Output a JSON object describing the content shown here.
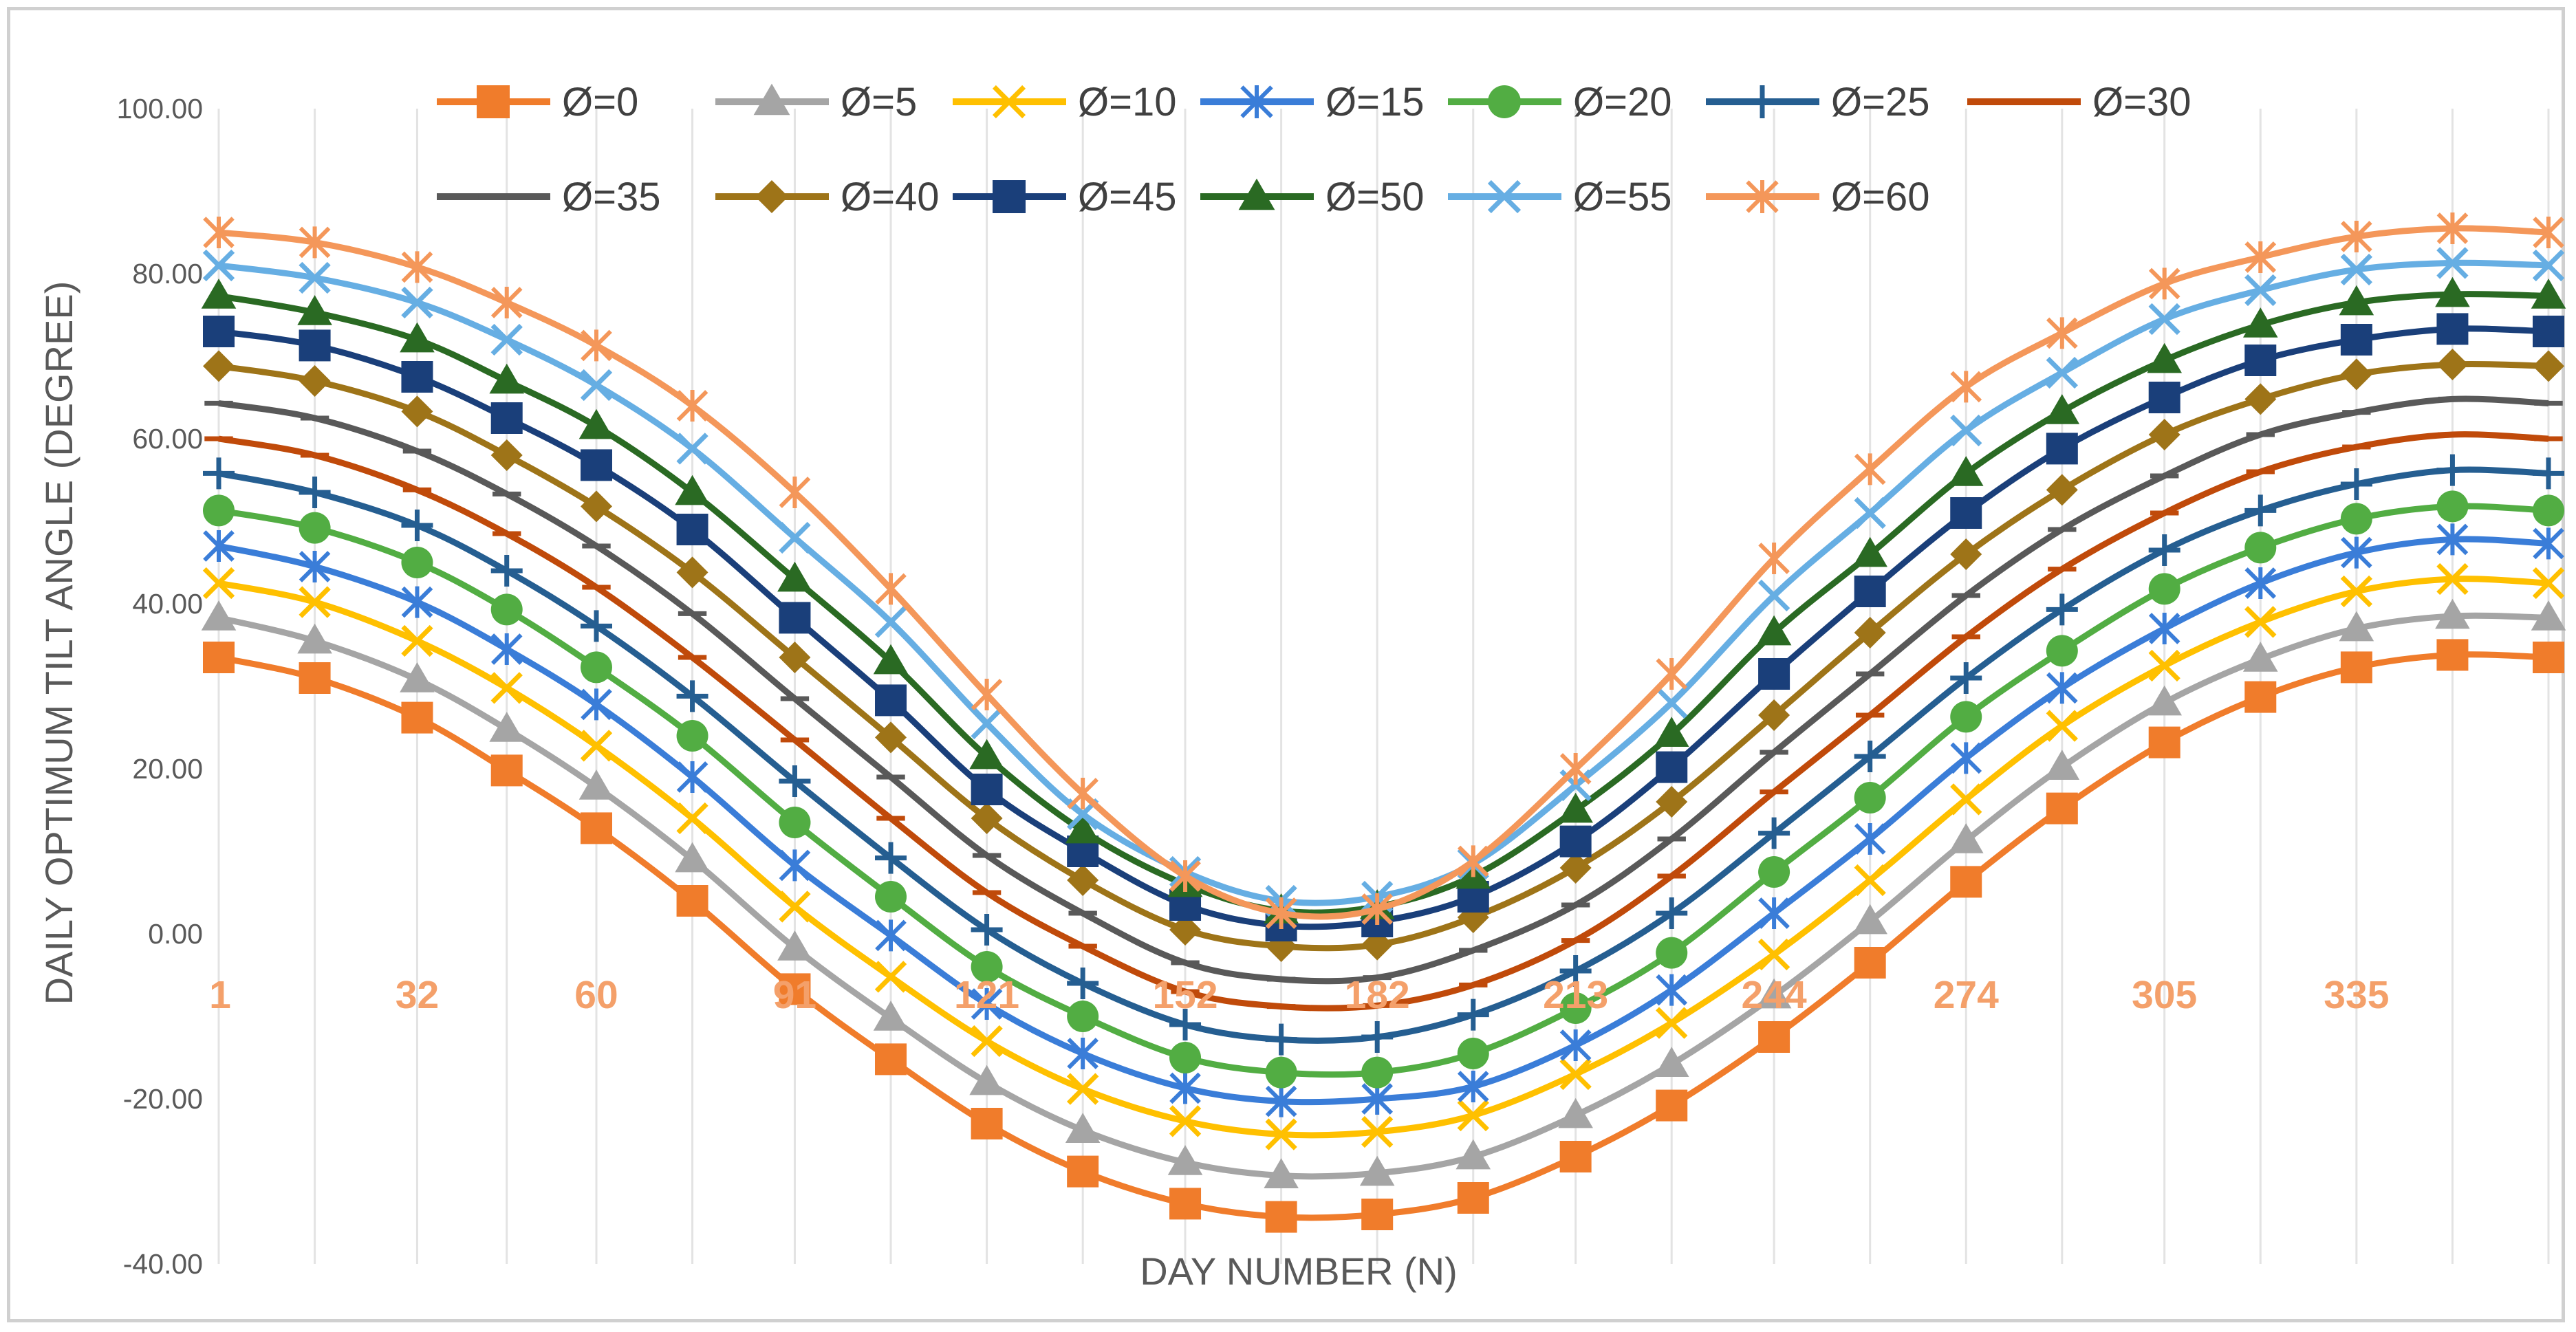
{
  "chart_data": {
    "type": "line",
    "xlabel": "DAY NUMBER (N)",
    "ylabel": "DAILY OPTIMUM TILT ANGLE (DEGREE)",
    "ylim": [
      -40,
      100
    ],
    "yticks": [
      "100.00",
      "80.00",
      "60.00",
      "40.00",
      "20.00",
      "0.00",
      "-20.00",
      "-40.00"
    ],
    "xticks": [
      "1",
      "32",
      "60",
      "91",
      "121",
      "152",
      "182",
      "213",
      "244",
      "274",
      "305",
      "335"
    ],
    "grid": "vertical",
    "legend_position": "top",
    "x": [
      1,
      16,
      32,
      46,
      60,
      75,
      91,
      106,
      121,
      136,
      152,
      167,
      182,
      197,
      213,
      228,
      244,
      259,
      274,
      289,
      305,
      320,
      335,
      350,
      365
    ],
    "series": [
      {
        "name": "Ø=0",
        "color": "#f07c2b",
        "marker": "square",
        "values": [
          33.5,
          31.0,
          26.2,
          19.8,
          12.8,
          4.0,
          -6.7,
          -15.2,
          -23.0,
          -28.8,
          -32.7,
          -34.3,
          -34.0,
          -32.0,
          -27.0,
          -20.8,
          -12.5,
          -3.5,
          6.3,
          15.2,
          23.2,
          28.7,
          32.3,
          33.8,
          33.5
        ]
      },
      {
        "name": "Ø=5",
        "color": "#a5a5a5",
        "marker": "triangle",
        "values": [
          38.3,
          35.5,
          30.8,
          24.8,
          17.8,
          9.0,
          -1.7,
          -10.2,
          -18.0,
          -23.8,
          -27.7,
          -29.3,
          -29.0,
          -27.0,
          -22.0,
          -15.8,
          -7.5,
          1.5,
          11.3,
          20.2,
          28.0,
          33.3,
          37.0,
          38.5,
          38.3
        ]
      },
      {
        "name": "Ø=10",
        "color": "#ffc000",
        "marker": "x",
        "values": [
          42.5,
          40.2,
          35.5,
          29.8,
          22.8,
          14.0,
          3.3,
          -5.2,
          -13.0,
          -18.8,
          -22.7,
          -24.3,
          -24.0,
          -22.0,
          -17.0,
          -10.8,
          -2.5,
          6.5,
          16.3,
          25.2,
          32.5,
          37.8,
          41.5,
          43.0,
          42.5
        ]
      },
      {
        "name": "Ø=15",
        "color": "#3a7dd8",
        "marker": "asterisk",
        "values": [
          47.0,
          44.5,
          40.2,
          34.5,
          27.8,
          19.0,
          8.3,
          -0.2,
          -8.5,
          -14.5,
          -18.7,
          -20.3,
          -20.0,
          -18.5,
          -13.5,
          -6.8,
          2.5,
          11.5,
          21.3,
          29.8,
          37.0,
          42.5,
          46.2,
          47.8,
          47.3
        ]
      },
      {
        "name": "Ø=20",
        "color": "#52ad43",
        "marker": "circle",
        "values": [
          51.3,
          49.2,
          45.0,
          39.3,
          32.3,
          24.0,
          13.5,
          4.5,
          -4.0,
          -10.0,
          -15.0,
          -16.8,
          -16.8,
          -14.5,
          -9.0,
          -2.3,
          7.5,
          16.5,
          26.3,
          34.3,
          41.8,
          46.8,
          50.3,
          51.8,
          51.3
        ]
      },
      {
        "name": "Ø=25",
        "color": "#255e91",
        "marker": "plus",
        "values": [
          55.8,
          53.5,
          49.5,
          44.0,
          37.3,
          28.8,
          18.5,
          9.2,
          0.5,
          -6.0,
          -11.0,
          -12.8,
          -12.5,
          -9.8,
          -4.5,
          2.5,
          12.2,
          21.5,
          31.0,
          39.3,
          46.5,
          51.3,
          54.5,
          56.2,
          55.8
        ]
      },
      {
        "name": "Ø=30",
        "color": "#c04a0a",
        "marker": "dash",
        "values": [
          60.0,
          58.0,
          53.8,
          48.5,
          42.0,
          33.5,
          23.5,
          14.0,
          5.0,
          -1.5,
          -7.0,
          -8.8,
          -8.7,
          -6.2,
          -0.8,
          7.0,
          17.2,
          26.5,
          36.0,
          44.2,
          51.0,
          56.0,
          59.0,
          60.5,
          60.0
        ]
      },
      {
        "name": "Ø=35",
        "color": "#595959",
        "marker": "dash",
        "values": [
          64.3,
          62.5,
          58.5,
          53.3,
          47.0,
          38.8,
          28.5,
          19.0,
          9.5,
          2.5,
          -3.5,
          -5.5,
          -5.3,
          -2.0,
          3.5,
          11.5,
          22.0,
          31.5,
          41.0,
          49.0,
          55.5,
          60.5,
          63.2,
          64.8,
          64.3
        ]
      },
      {
        "name": "Ø=40",
        "color": "#9e7418",
        "marker": "diamond",
        "values": [
          68.8,
          67.0,
          63.3,
          58.0,
          51.8,
          43.8,
          33.5,
          23.8,
          14.0,
          6.5,
          0.5,
          -1.5,
          -1.3,
          2.0,
          8.0,
          16.0,
          26.5,
          36.5,
          46.0,
          53.8,
          60.5,
          64.8,
          67.8,
          69.0,
          68.8
        ]
      },
      {
        "name": "Ø=45",
        "color": "#1a3f7a",
        "marker": "square",
        "values": [
          73.0,
          71.3,
          67.5,
          62.5,
          56.8,
          49.0,
          38.3,
          28.3,
          17.5,
          10.0,
          3.5,
          1.0,
          1.5,
          4.5,
          11.2,
          20.2,
          31.5,
          41.5,
          51.0,
          58.8,
          65.0,
          69.5,
          72.0,
          73.3,
          73.0
        ]
      },
      {
        "name": "Ø=50",
        "color": "#2a6a23",
        "marker": "triangle",
        "values": [
          77.3,
          75.3,
          72.0,
          67.0,
          61.5,
          53.5,
          43.0,
          33.0,
          21.5,
          12.5,
          6.0,
          2.8,
          3.3,
          7.0,
          15.0,
          24.2,
          36.5,
          46.0,
          55.8,
          63.3,
          69.5,
          73.8,
          76.5,
          77.5,
          77.3
        ]
      },
      {
        "name": "Ø=55",
        "color": "#66aee3",
        "marker": "x",
        "values": [
          81.0,
          79.5,
          76.5,
          72.0,
          66.5,
          58.8,
          48.0,
          37.8,
          25.5,
          14.5,
          7.5,
          4.0,
          4.5,
          8.5,
          18.0,
          28.0,
          41.0,
          51.0,
          61.0,
          68.0,
          74.5,
          78.0,
          80.5,
          81.3,
          81.0
        ]
      },
      {
        "name": "Ø=60",
        "color": "#f4975a",
        "marker": "asterisk",
        "values": [
          85.0,
          83.8,
          80.8,
          76.5,
          71.3,
          64.0,
          53.5,
          41.8,
          29.0,
          17.0,
          7.0,
          2.5,
          3.0,
          8.8,
          20.0,
          31.5,
          45.5,
          56.3,
          66.3,
          72.8,
          78.8,
          82.0,
          84.5,
          85.5,
          85.0
        ]
      }
    ]
  }
}
